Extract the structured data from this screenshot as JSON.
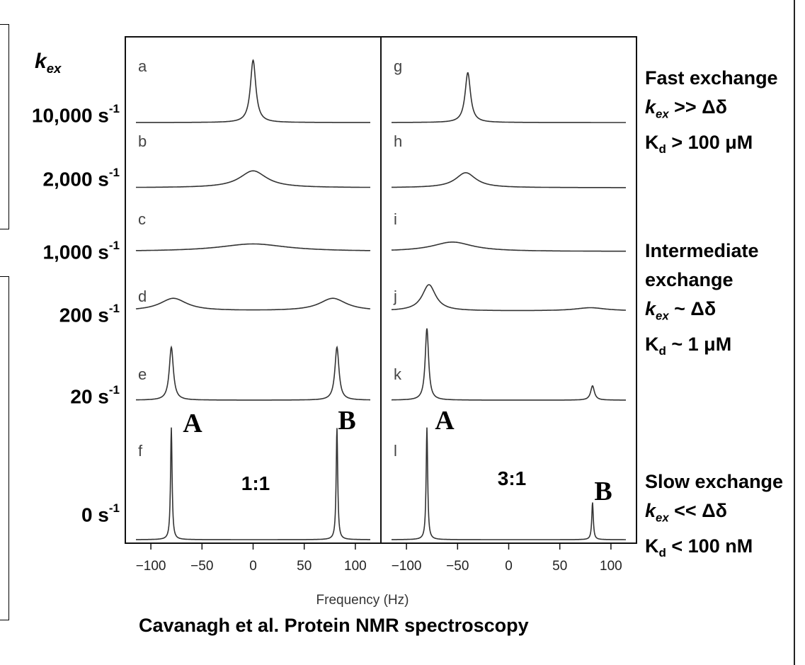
{
  "header": {
    "kex_label": "k",
    "kex_sub": "ex"
  },
  "rates": [
    {
      "value": "10,000 s",
      "exp": "-1"
    },
    {
      "value": "2,000 s",
      "exp": "-1"
    },
    {
      "value": "1,000 s",
      "exp": "-1"
    },
    {
      "value": "200 s",
      "exp": "-1"
    },
    {
      "value": "20 s",
      "exp": "-1"
    },
    {
      "value": "0 s",
      "exp": "-1"
    }
  ],
  "annotations": {
    "fast": {
      "title": "Fast exchange",
      "cond_k": "k",
      "cond_sub": "ex",
      "cond_rest": " >> Δδ",
      "kd_k": "K",
      "kd_sub": "d",
      "kd_rest": " > 100 μM"
    },
    "intermediate": {
      "title1": "Intermediate",
      "title2": "exchange",
      "cond_k": "k",
      "cond_sub": "ex",
      "cond_rest": " ~ Δδ",
      "kd_k": "K",
      "kd_sub": "d",
      "kd_rest": " ~ 1 μM"
    },
    "slow": {
      "title": "Slow exchange",
      "cond_k": "k",
      "cond_sub": "ex",
      "cond_rest": " << Δδ",
      "kd_k": "K",
      "kd_sub": "d",
      "kd_rest": " < 100 nM"
    }
  },
  "credit": "Cavanagh et al. Protein NMR spectroscopy",
  "chart_data": {
    "type": "line",
    "xlabel": "Frequency (Hz)",
    "xlim": [
      -125,
      125
    ],
    "xticks": [
      -100,
      -50,
      0,
      50,
      100
    ],
    "xtick_labels": [
      "−100",
      "−50",
      "0",
      "50",
      "100"
    ],
    "panels": [
      {
        "name": "left",
        "ratio_label": "1:1",
        "site_labels": [
          "A",
          "B"
        ],
        "spectra": [
          {
            "label": "a",
            "kex": 10000,
            "peaks": [
              {
                "center": 0,
                "width": 3.2,
                "height": 1.0
              }
            ]
          },
          {
            "label": "b",
            "kex": 2000,
            "peaks": [
              {
                "center": 0,
                "width": 16,
                "height": 0.27
              }
            ]
          },
          {
            "label": "c",
            "kex": 1000,
            "peaks": [
              {
                "center": 0,
                "width": 40,
                "height": 0.12
              }
            ]
          },
          {
            "label": "d",
            "kex": 200,
            "peaks": [
              {
                "center": -78,
                "width": 16,
                "height": 0.2
              },
              {
                "center": 78,
                "width": 16,
                "height": 0.2
              }
            ]
          },
          {
            "label": "e",
            "kex": 20,
            "peaks": [
              {
                "center": -80,
                "width": 2.4,
                "height": 0.85
              },
              {
                "center": 82,
                "width": 2.4,
                "height": 0.85
              }
            ]
          },
          {
            "label": "f",
            "kex": 0,
            "peaks": [
              {
                "center": -80,
                "width": 0.9,
                "height": 1.8
              },
              {
                "center": 82,
                "width": 0.9,
                "height": 1.8
              }
            ]
          }
        ]
      },
      {
        "name": "right",
        "ratio_label": "3:1",
        "site_labels": [
          "A",
          "B"
        ],
        "spectra": [
          {
            "label": "g",
            "kex": 10000,
            "peaks": [
              {
                "center": -40,
                "width": 3.2,
                "height": 0.8
              }
            ]
          },
          {
            "label": "h",
            "kex": 2000,
            "peaks": [
              {
                "center": -42,
                "width": 12,
                "height": 0.24
              }
            ]
          },
          {
            "label": "i",
            "kex": 1000,
            "peaks": [
              {
                "center": -55,
                "width": 24,
                "height": 0.15
              }
            ]
          },
          {
            "label": "j",
            "kex": 200,
            "peaks": [
              {
                "center": -78,
                "width": 8,
                "height": 0.42
              },
              {
                "center": 80,
                "width": 18,
                "height": 0.05
              }
            ]
          },
          {
            "label": "k",
            "kex": 20,
            "peaks": [
              {
                "center": -80,
                "width": 2.0,
                "height": 1.15
              },
              {
                "center": 82,
                "width": 2.2,
                "height": 0.23
              }
            ]
          },
          {
            "label": "l",
            "kex": 0,
            "peaks": [
              {
                "center": -80,
                "width": 0.9,
                "height": 1.8
              },
              {
                "center": 82,
                "width": 0.9,
                "height": 0.6
              }
            ]
          }
        ]
      }
    ]
  }
}
